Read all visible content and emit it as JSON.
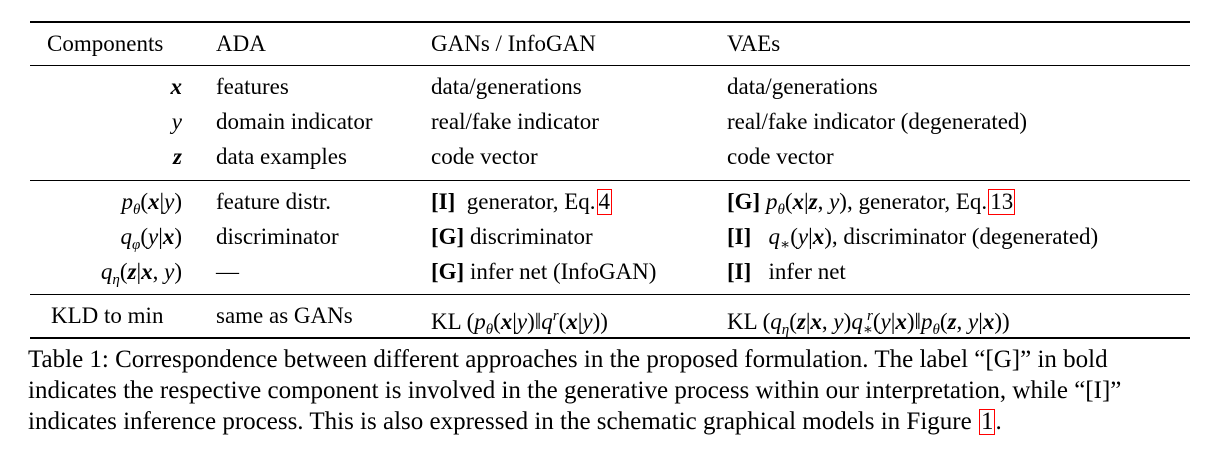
{
  "table": {
    "headers": [
      "Components",
      "ADA",
      "GANs / InfoGAN",
      "VAEs"
    ],
    "rows": [
      {
        "component": "x",
        "ada": "features",
        "gan": "data/generations",
        "vae": "data/generations"
      },
      {
        "component": "y",
        "ada": "domain indicator",
        "gan": "real/fake indicator",
        "vae": "real/fake indicator (degenerated)"
      },
      {
        "component": "z",
        "ada": "data examples",
        "gan": "code vector",
        "vae": "code vector"
      },
      {
        "component": "pθ(x|y)",
        "ada": "feature distr.",
        "gan_tag": "[I]",
        "gan_text": "generator, Eq.",
        "gan_ref": "4",
        "vae_tag": "[G]",
        "vae_text": ", generator, Eq.",
        "vae_ref": "13"
      },
      {
        "component": "qφ(y|x)",
        "ada": "discriminator",
        "gan_tag": "[G]",
        "gan_text": "discriminator",
        "vae_tag": "[I]",
        "vae_text": ", discriminator (degenerated)"
      },
      {
        "component": "qη(z|x, y)",
        "ada": "—",
        "gan_tag": "[G]",
        "gan_text": "infer net (InfoGAN)",
        "vae_tag": "[I]",
        "vae_text": "infer net"
      },
      {
        "component": "KLD to min",
        "ada": "same as GANs",
        "gan_prefix": "KL",
        "vae_prefix": "KL"
      }
    ]
  },
  "caption": {
    "text": "Table 1: Correspondence between different approaches in the proposed formulation. The label “[G]” in bold indicates the respective component is involved in the generative process within our interpretation, while “[I]” indicates inference process. This is also expressed in the schematic graphical models in Figure",
    "ref": "1",
    "end": "."
  }
}
